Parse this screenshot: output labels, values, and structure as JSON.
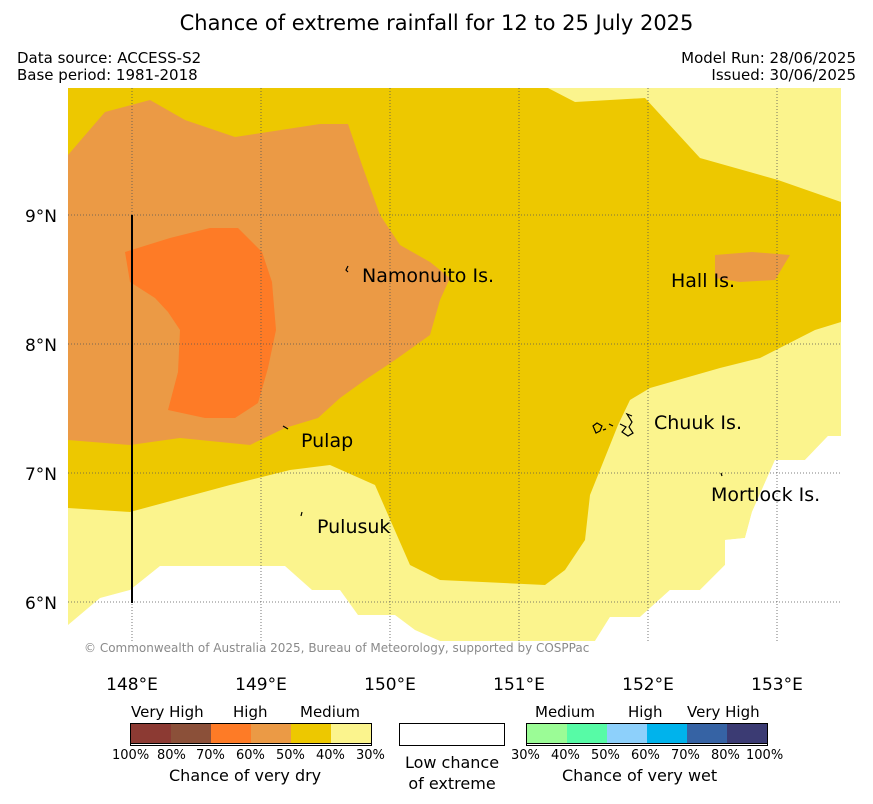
{
  "title": "Chance of extreme rainfall for 12 to 25 July 2025",
  "meta": {
    "data_source": "Data source: ACCESS-S2",
    "base_period": "Base period: 1981-2018",
    "model_run": "Model Run: 28/06/2025",
    "issued": "Issued: 30/06/2025"
  },
  "map": {
    "lat_labels": [
      "9°N",
      "8°N",
      "7°N",
      "6°N"
    ],
    "lon_labels": [
      "148°E",
      "149°E",
      "150°E",
      "151°E",
      "152°E",
      "153°E"
    ],
    "places": [
      "Namonuito Is.",
      "Hall Is.",
      "Pulap",
      "Chuuk Is.",
      "Mortlock Is.",
      "Pulusuk"
    ],
    "copyright": "© Commonwealth of Australia 2025, Bureau of Meteorology, supported by COSPPac",
    "colors": {
      "dry_30_40": "#fbf48d",
      "dry_40_50": "#edc800",
      "dry_50_60": "#eb9a45",
      "dry_60_70": "#fe7b26",
      "grid": "#555555"
    }
  },
  "legend": {
    "dry": {
      "headings": [
        "Very High",
        "High",
        "Medium"
      ],
      "ticks": [
        "100%",
        "80%",
        "70%",
        "60%",
        "50%",
        "40%",
        "30%"
      ],
      "colors": [
        "#8c3a33",
        "#8b5039",
        "#fe7b26",
        "#eb9a45",
        "#edc800",
        "#fbf48d"
      ],
      "caption": "Chance of very dry"
    },
    "neutral": {
      "caption_line1": "Low chance",
      "caption_line2": "of extreme"
    },
    "wet": {
      "headings": [
        "Medium",
        "High",
        "Very High"
      ],
      "ticks": [
        "30%",
        "40%",
        "50%",
        "60%",
        "70%",
        "80%",
        "100%"
      ],
      "colors": [
        "#9bfc96",
        "#57fba6",
        "#8dd0fb",
        "#00b3ec",
        "#3663a4",
        "#3b3b73"
      ],
      "caption": "Chance of very wet"
    }
  }
}
